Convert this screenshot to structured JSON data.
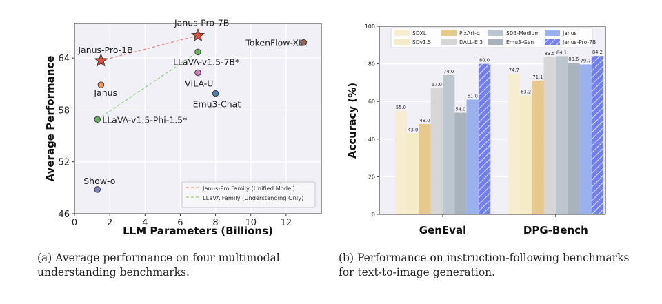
{
  "chart_data": [
    {
      "type": "scatter",
      "xlabel": "LLM Parameters (Billions)",
      "ylabel": "Average Performance",
      "xlim": [
        0,
        14
      ],
      "ylim": [
        46,
        68
      ],
      "xticks": [
        "0",
        "2",
        "4",
        "6",
        "8",
        "10",
        "12"
      ],
      "yticks": [
        "46",
        "52",
        "58",
        "64"
      ],
      "grid": true,
      "legend_position": "bottom-right",
      "points": [
        {
          "label": "Janus-Pro-1B",
          "x": 1.5,
          "y": 63.7,
          "color": "#d94f3d",
          "marker": "star"
        },
        {
          "label": "Janus-Pro-7B",
          "x": 7.0,
          "y": 66.6,
          "color": "#d94f3d",
          "marker": "star"
        },
        {
          "label": "Janus",
          "x": 1.5,
          "y": 60.9,
          "color": "#f0965a",
          "marker": "circle"
        },
        {
          "label": "LLaVA-v1.5-Phi-1.5*",
          "x": 1.3,
          "y": 56.9,
          "color": "#66b05a",
          "marker": "circle"
        },
        {
          "label": "LLaVA-v1.5-7B*",
          "x": 7.0,
          "y": 64.7,
          "color": "#66b05a",
          "marker": "circle"
        },
        {
          "label": "VILA-U",
          "x": 7.0,
          "y": 62.3,
          "color": "#d67bbf",
          "marker": "circle"
        },
        {
          "label": "Emu3-Chat",
          "x": 8.0,
          "y": 59.9,
          "color": "#4a78b0",
          "marker": "circle"
        },
        {
          "label": "TokenFlow-XL",
          "x": 13.0,
          "y": 65.8,
          "color": "#9c6555",
          "marker": "circle"
        },
        {
          "label": "Show-o",
          "x": 1.3,
          "y": 48.8,
          "color": "#7b85c4",
          "marker": "circle"
        }
      ],
      "lines": [
        {
          "name": "Janus-Pro Family (Unified Model)",
          "color": "#e88a82",
          "from": [
            1.5,
            63.7
          ],
          "to": [
            7.0,
            66.6
          ]
        },
        {
          "name": "LLaVA Family (Understanding Only)",
          "color": "#8fcf85",
          "from": [
            1.3,
            56.9
          ],
          "to": [
            7.0,
            64.7
          ]
        }
      ],
      "caption": "(a) Average performance on four multimodal understanding benchmarks."
    },
    {
      "type": "bar",
      "categories": [
        "GenEval",
        "DPG-Bench"
      ],
      "ylabel": "Accuracy (%)",
      "ylim": [
        0,
        100
      ],
      "yticks": [
        "0",
        "20",
        "40",
        "60",
        "80",
        "100"
      ],
      "grid": true,
      "legend_position": "top",
      "series": [
        {
          "name": "SDXL",
          "color": "#f7eed2",
          "values": [
            55.0,
            74.7
          ],
          "labels": [
            "55.0",
            "74.7"
          ]
        },
        {
          "name": "SDv1.5",
          "color": "#f5ebc7",
          "values": [
            43.0,
            63.2
          ],
          "labels": [
            "43.0",
            "63.2"
          ]
        },
        {
          "name": "PixArt-α",
          "color": "#e8c98d",
          "values": [
            48.0,
            71.1
          ],
          "labels": [
            "48.0",
            "71.1"
          ]
        },
        {
          "name": "DALL-E 3",
          "color": "#d6d6d6",
          "values": [
            67.0,
            83.5
          ],
          "labels": [
            "67.0",
            "83.5"
          ]
        },
        {
          "name": "SD3-Medium",
          "color": "#bdc5cf",
          "values": [
            74.0,
            84.1
          ],
          "labels": [
            "74.0",
            "84.1"
          ]
        },
        {
          "name": "Emu3-Gen",
          "color": "#a9b3bd",
          "values": [
            54.0,
            80.6
          ],
          "labels": [
            "54.0",
            "80.6"
          ]
        },
        {
          "name": "Janus",
          "color": "#9ab1ee",
          "values": [
            61.0,
            79.7
          ],
          "labels": [
            "61.0",
            "79.7"
          ]
        },
        {
          "name": "Janus-Pro-7B",
          "color": "#7180ee",
          "values": [
            80.0,
            84.2
          ],
          "labels": [
            "80.0",
            "84.2"
          ],
          "hatch": true
        }
      ],
      "caption": "(b) Performance on instruction-following benchmarks for text-to-image generation."
    }
  ]
}
